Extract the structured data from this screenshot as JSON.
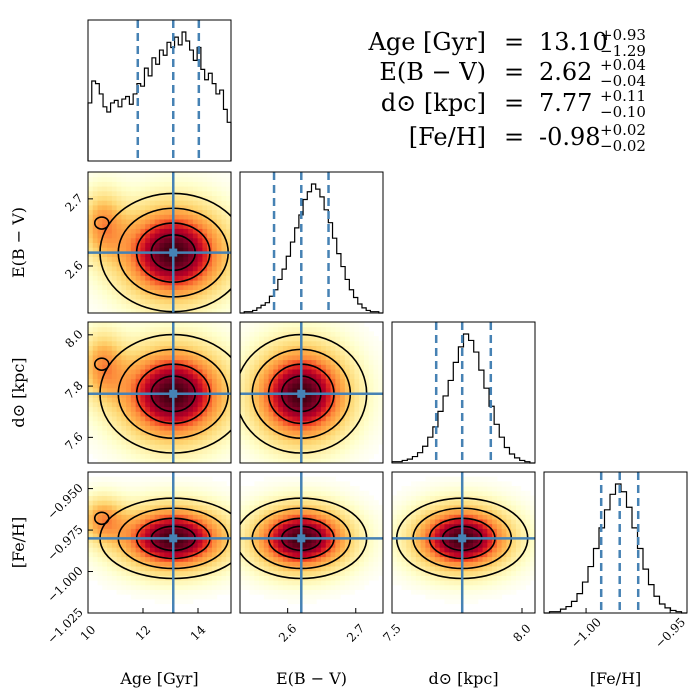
{
  "chart_data": {
    "type": "corner",
    "title": "",
    "parameters": [
      {
        "key": "age",
        "label": "Age [Gyr]",
        "name": "Age",
        "unit": "[Gyr]",
        "range": [
          10.0,
          15.2
        ],
        "ticks": [
          10,
          12,
          14
        ],
        "tick_labels": [
          "10",
          "12",
          "14"
        ],
        "truth": 13.1,
        "median": 13.1,
        "err_plus": "+0.93",
        "err_minus": "−1.29",
        "value_text": "13.10",
        "quantiles": [
          11.81,
          13.1,
          14.03
        ]
      },
      {
        "key": "ebv",
        "label": "E(B − V)",
        "name": "E(B − V)",
        "unit": "",
        "range": [
          2.53,
          2.74
        ],
        "ticks": [
          2.6,
          2.7
        ],
        "tick_labels": [
          "2.6",
          "2.7"
        ],
        "truth": 2.62,
        "median": 2.62,
        "err_plus": "+0.04",
        "err_minus": "−0.04",
        "value_text": "2.62",
        "quantiles": [
          2.58,
          2.62,
          2.66
        ]
      },
      {
        "key": "dist",
        "label": "d⊙ [kpc]",
        "name": "d⊙",
        "unit": "[kpc]",
        "range": [
          7.5,
          8.05
        ],
        "ticks": [
          7.5,
          8.0
        ],
        "tick_labels": [
          "7.5",
          "8.0"
        ],
        "ytick_values": [
          7.6,
          7.8,
          8.0
        ],
        "ytick_labels": [
          "7.6",
          "7.8",
          "8.0"
        ],
        "truth": 7.77,
        "median": 7.77,
        "err_plus": "+0.11",
        "err_minus": "−0.10",
        "value_text": "7.77",
        "quantiles": [
          7.67,
          7.77,
          7.88
        ]
      },
      {
        "key": "feh",
        "label": "[Fe/H]",
        "name": "[Fe/H]",
        "unit": "",
        "range": [
          -1.025,
          -0.94
        ],
        "ticks": [
          -1.0,
          -0.95
        ],
        "tick_labels": [
          "−1.00",
          "−0.95"
        ],
        "ytick_values": [
          -0.95,
          -0.975,
          -1.0,
          -1.025
        ],
        "ytick_labels": [
          "−0.950",
          "−0.975",
          "−1.000",
          "−1.025"
        ],
        "truth": -0.98,
        "median": -0.98,
        "err_plus": "+0.02",
        "err_minus": "−0.02",
        "value_text": "-0.98",
        "quantiles": [
          -0.991,
          -0.98,
          -0.969
        ]
      }
    ],
    "histograms": [
      {
        "param": "age",
        "counts": [
          0.45,
          0.62,
          0.6,
          0.52,
          0.42,
          0.38,
          0.45,
          0.47,
          0.42,
          0.48,
          0.5,
          0.44,
          0.52,
          0.6,
          0.58,
          0.72,
          0.66,
          0.8,
          0.75,
          0.86,
          0.82,
          0.92,
          0.88,
          0.96,
          0.9,
          1.0,
          0.93,
          0.86,
          0.78,
          0.88,
          0.71,
          0.63,
          0.68,
          0.6,
          0.52,
          0.55,
          0.4,
          0.3
        ]
      },
      {
        "param": "ebv",
        "counts": [
          0.0,
          0.01,
          0.01,
          0.02,
          0.04,
          0.06,
          0.08,
          0.13,
          0.18,
          0.26,
          0.34,
          0.44,
          0.55,
          0.66,
          0.76,
          0.88,
          0.94,
          1.0,
          0.96,
          0.9,
          0.8,
          0.7,
          0.58,
          0.46,
          0.36,
          0.26,
          0.18,
          0.12,
          0.07,
          0.04,
          0.02,
          0.01,
          0.01,
          0.0
        ]
      },
      {
        "param": "dist",
        "counts": [
          0.01,
          0.01,
          0.02,
          0.03,
          0.05,
          0.08,
          0.13,
          0.2,
          0.28,
          0.4,
          0.52,
          0.64,
          0.78,
          0.9,
          1.0,
          0.95,
          0.86,
          0.72,
          0.58,
          0.44,
          0.3,
          0.2,
          0.12,
          0.07,
          0.04,
          0.02,
          0.01,
          0.0
        ]
      },
      {
        "param": "feh",
        "counts": [
          0.0,
          0.01,
          0.01,
          0.03,
          0.05,
          0.09,
          0.15,
          0.24,
          0.36,
          0.5,
          0.66,
          0.8,
          0.92,
          1.0,
          0.94,
          0.82,
          0.66,
          0.5,
          0.34,
          0.22,
          0.13,
          0.07,
          0.04,
          0.02,
          0.01,
          0.0
        ]
      }
    ],
    "summary_separator": "=",
    "truth_color": "#4682b4",
    "contour_color": "#000000",
    "colormap": [
      "#ffffff",
      "#ffffcc",
      "#ffeda0",
      "#fed976",
      "#feb24c",
      "#fd8d3c",
      "#f03b20",
      "#bd0026",
      "#800026",
      "#3d0010"
    ]
  }
}
